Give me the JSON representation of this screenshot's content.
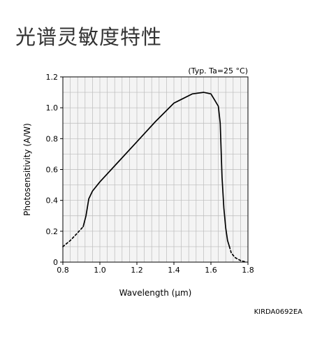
{
  "page": {
    "title": "光谱灵敏度特性",
    "figure_code": "KIRDA0692EA"
  },
  "chart_data": {
    "type": "line",
    "title": "",
    "annotation": "(Typ. Ta=25 °C)",
    "xlabel": "Wavelength (μm)",
    "ylabel": "Photosensitivity (A/W)",
    "xlim": [
      0.8,
      1.8
    ],
    "ylim": [
      0,
      1.2
    ],
    "xticks": [
      0.8,
      1.0,
      1.2,
      1.4,
      1.6,
      1.8
    ],
    "xtick_labels": [
      "0.8",
      "1.0",
      "1.2",
      "1.4",
      "1.6",
      "1.8"
    ],
    "yticks": [
      0,
      0.2,
      0.4,
      0.6,
      0.8,
      1.0,
      1.2
    ],
    "ytick_labels": [
      "0",
      "0.2",
      "0.4",
      "0.6",
      "0.8",
      "1.0",
      "1.2"
    ],
    "grid": true,
    "grid_color": "#bbbbbb",
    "plot_background": "#f4f4f4",
    "line_color": "#000000",
    "series": [
      {
        "style": "dashed",
        "x": [
          0.8,
          0.84,
          0.88,
          0.91
        ],
        "y": [
          0.1,
          0.14,
          0.19,
          0.23
        ]
      },
      {
        "style": "solid",
        "x": [
          0.91,
          0.925,
          0.94,
          0.96,
          1.0,
          1.1,
          1.2,
          1.3,
          1.4,
          1.5,
          1.56,
          1.6,
          1.62,
          1.64,
          1.65,
          1.66,
          1.67,
          1.68,
          1.69,
          1.7
        ],
        "y": [
          0.23,
          0.3,
          0.41,
          0.46,
          0.52,
          0.65,
          0.78,
          0.91,
          1.03,
          1.09,
          1.1,
          1.09,
          1.05,
          1.01,
          0.9,
          0.55,
          0.35,
          0.22,
          0.14,
          0.1
        ]
      },
      {
        "style": "dashed",
        "x": [
          1.7,
          1.71,
          1.73,
          1.76,
          1.79
        ],
        "y": [
          0.1,
          0.06,
          0.03,
          0.01,
          0.0
        ]
      }
    ]
  }
}
